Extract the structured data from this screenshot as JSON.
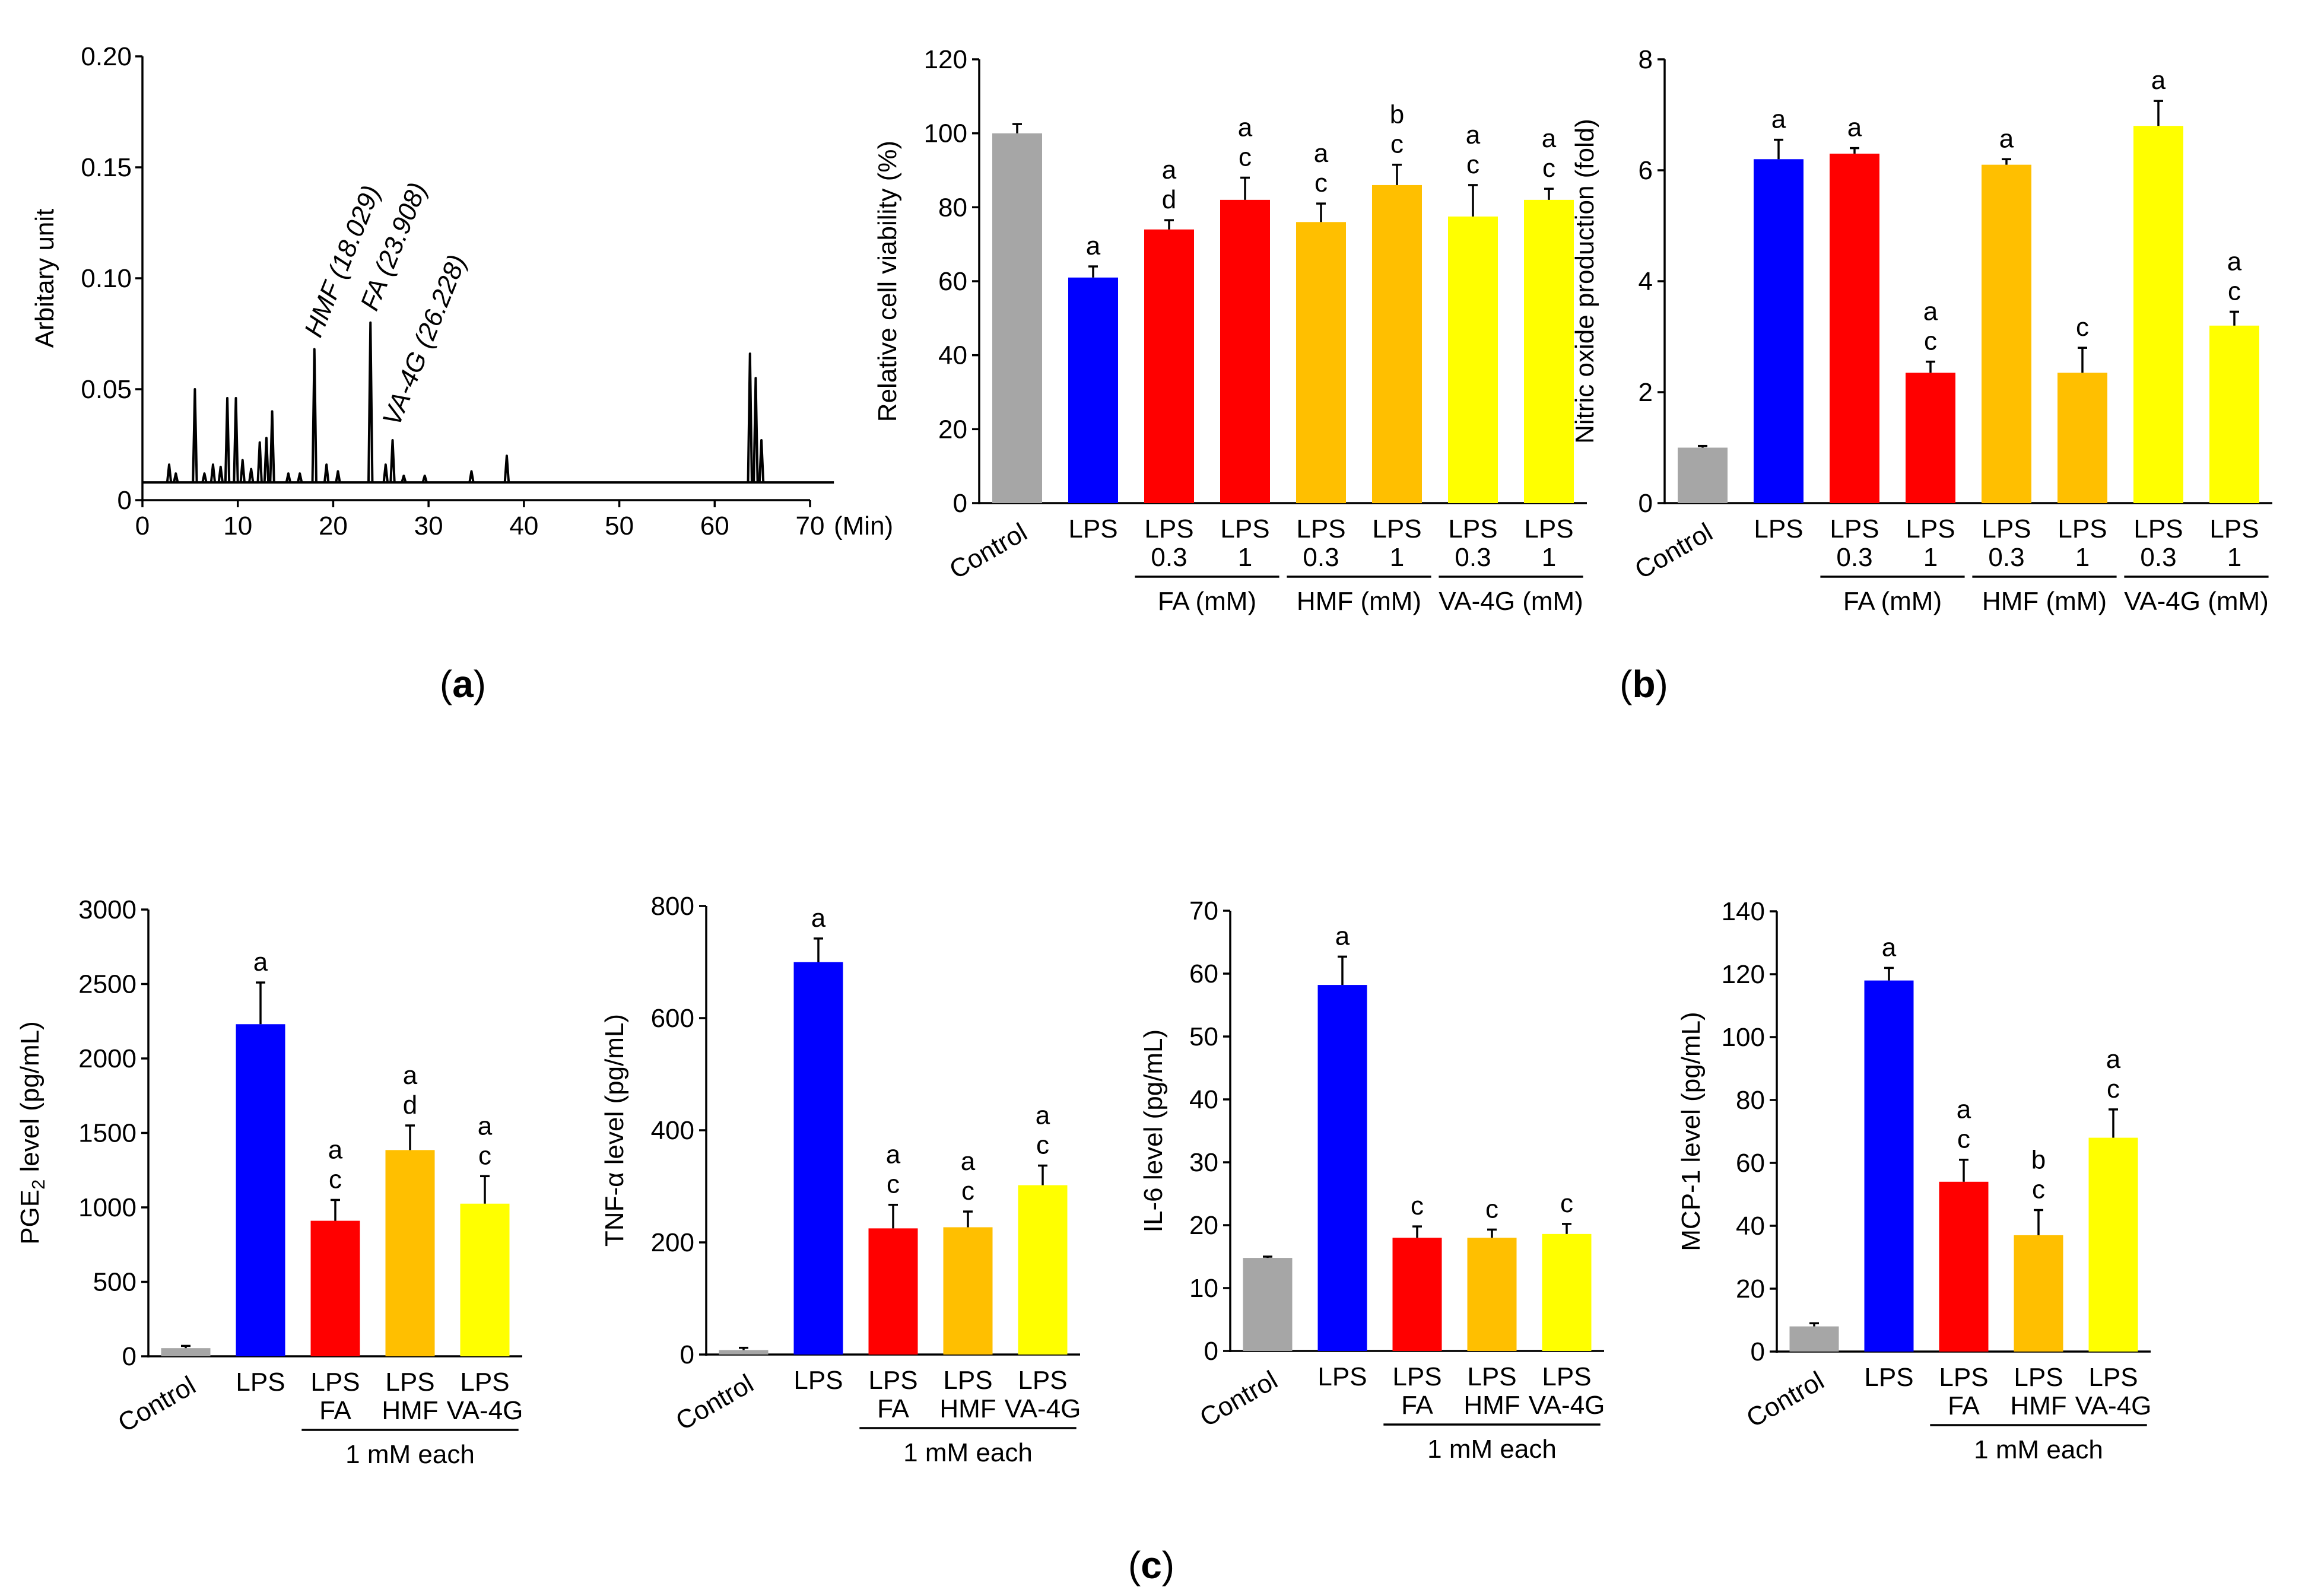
{
  "panel_labels": {
    "a": "a",
    "b": "b",
    "c": "c"
  },
  "colors": {
    "gray": "#a6a6a6",
    "blue": "#0000ff",
    "red": "#ff0000",
    "orange": "#ffbf00",
    "yellow": "#ffff00",
    "line": "#000000"
  },
  "chart_data": [
    {
      "id": "a",
      "type": "line",
      "title": "",
      "xlabel": "(Min)",
      "ylabel": "Arbitary unit",
      "xlim": [
        0,
        70
      ],
      "ylim": [
        0,
        0.2
      ],
      "xticks": [
        0,
        10,
        20,
        30,
        40,
        50,
        60,
        70
      ],
      "xtick_labels": [
        "0",
        "10",
        "20",
        "30",
        "40",
        "50",
        "60",
        "70"
      ],
      "yticks": [
        0,
        0.05,
        0.1,
        0.15,
        0.2
      ],
      "ytick_labels": [
        "0",
        "0.05",
        "0.10",
        "0.15",
        "0.20"
      ],
      "baseline": 0.008,
      "peaks": [
        {
          "x": 2.8,
          "y": 0.016
        },
        {
          "x": 3.5,
          "y": 0.012
        },
        {
          "x": 5.5,
          "y": 0.05
        },
        {
          "x": 6.5,
          "y": 0.012
        },
        {
          "x": 7.4,
          "y": 0.016
        },
        {
          "x": 8.2,
          "y": 0.015
        },
        {
          "x": 8.9,
          "y": 0.046
        },
        {
          "x": 9.8,
          "y": 0.046
        },
        {
          "x": 10.5,
          "y": 0.018
        },
        {
          "x": 11.4,
          "y": 0.014
        },
        {
          "x": 12.3,
          "y": 0.026
        },
        {
          "x": 13.0,
          "y": 0.028
        },
        {
          "x": 13.6,
          "y": 0.04
        },
        {
          "x": 15.3,
          "y": 0.012
        },
        {
          "x": 16.5,
          "y": 0.012
        },
        {
          "x": 18.029,
          "y": 0.068
        },
        {
          "x": 19.3,
          "y": 0.016
        },
        {
          "x": 20.5,
          "y": 0.013
        },
        {
          "x": 23.908,
          "y": 0.08
        },
        {
          "x": 25.5,
          "y": 0.016
        },
        {
          "x": 26.228,
          "y": 0.027
        },
        {
          "x": 27.4,
          "y": 0.011
        },
        {
          "x": 29.6,
          "y": 0.011
        },
        {
          "x": 34.5,
          "y": 0.013
        },
        {
          "x": 38.2,
          "y": 0.02
        },
        {
          "x": 63.7,
          "y": 0.066
        },
        {
          "x": 64.3,
          "y": 0.055
        },
        {
          "x": 64.9,
          "y": 0.027
        }
      ],
      "annotations": [
        {
          "text": "HMF (18.029)",
          "x": 18.029,
          "y": 0.07
        },
        {
          "text": "FA (23.908)",
          "x": 23.908,
          "y": 0.082
        },
        {
          "text": "VA-4G (26.228)",
          "x": 26.228,
          "y": 0.03
        }
      ]
    },
    {
      "id": "b1",
      "type": "bar",
      "ylabel": "Relative cell viability (%)",
      "ylim": [
        0,
        120
      ],
      "yticks": [
        0,
        20,
        40,
        60,
        80,
        100,
        120
      ],
      "categories": [
        {
          "lines": [
            "Control"
          ],
          "rotated": true
        },
        {
          "lines": [
            "LPS"
          ]
        },
        {
          "lines": [
            "LPS",
            "0.3"
          ]
        },
        {
          "lines": [
            "LPS",
            "1"
          ]
        },
        {
          "lines": [
            "LPS",
            "0.3"
          ]
        },
        {
          "lines": [
            "LPS",
            "1"
          ]
        },
        {
          "lines": [
            "LPS",
            "0.3"
          ]
        },
        {
          "lines": [
            "LPS",
            "1"
          ]
        }
      ],
      "values": [
        100,
        61,
        74,
        82,
        76,
        86,
        77.5,
        82
      ],
      "errors": [
        2.5,
        3,
        2.5,
        6,
        5,
        5.5,
        8.5,
        3
      ],
      "colors": [
        "gray",
        "blue",
        "red",
        "red",
        "orange",
        "orange",
        "yellow",
        "yellow"
      ],
      "sig_labels": [
        [],
        [
          "a"
        ],
        [
          "a",
          "d"
        ],
        [
          "a",
          "c"
        ],
        [
          "a",
          "c"
        ],
        [
          "b",
          "c"
        ],
        [
          "a",
          "c"
        ],
        [
          "a",
          "c"
        ]
      ],
      "groups": [
        {
          "label": "FA (mM)",
          "from": 2,
          "to": 3
        },
        {
          "label": "HMF (mM)",
          "from": 4,
          "to": 5
        },
        {
          "label": "VA-4G (mM)",
          "from": 6,
          "to": 7
        }
      ]
    },
    {
      "id": "b2",
      "type": "bar",
      "ylabel": "Nitric oxide production (fold)",
      "ylim": [
        0,
        8
      ],
      "yticks": [
        0,
        2,
        4,
        6,
        8
      ],
      "categories": [
        {
          "lines": [
            "Control"
          ],
          "rotated": true
        },
        {
          "lines": [
            "LPS"
          ]
        },
        {
          "lines": [
            "LPS",
            "0.3"
          ]
        },
        {
          "lines": [
            "LPS",
            "1"
          ]
        },
        {
          "lines": [
            "LPS",
            "0.3"
          ]
        },
        {
          "lines": [
            "LPS",
            "1"
          ]
        },
        {
          "lines": [
            "LPS",
            "0.3"
          ]
        },
        {
          "lines": [
            "LPS",
            "1"
          ]
        }
      ],
      "values": [
        1.0,
        6.2,
        6.3,
        2.35,
        6.1,
        2.35,
        6.8,
        3.2
      ],
      "errors": [
        0.03,
        0.35,
        0.1,
        0.2,
        0.1,
        0.45,
        0.45,
        0.25
      ],
      "colors": [
        "gray",
        "blue",
        "red",
        "red",
        "orange",
        "orange",
        "yellow",
        "yellow"
      ],
      "sig_labels": [
        [],
        [
          "a"
        ],
        [
          "a"
        ],
        [
          "a",
          "c"
        ],
        [
          "a"
        ],
        [
          "c"
        ],
        [
          "a"
        ],
        [
          "a",
          "c"
        ]
      ],
      "groups": [
        {
          "label": "FA (mM)",
          "from": 2,
          "to": 3
        },
        {
          "label": "HMF (mM)",
          "from": 4,
          "to": 5
        },
        {
          "label": "VA-4G (mM)",
          "from": 6,
          "to": 7
        }
      ]
    },
    {
      "id": "c1",
      "type": "bar",
      "ylabel": "PGE2 level (pg/mL)",
      "ylabel_parts": [
        "PGE",
        "2",
        " level (pg/mL)"
      ],
      "ylim": [
        0,
        3000
      ],
      "yticks": [
        0,
        500,
        1000,
        1500,
        2000,
        2500,
        3000
      ],
      "categories": [
        {
          "lines": [
            "Control"
          ],
          "rotated": true
        },
        {
          "lines": [
            "LPS"
          ]
        },
        {
          "lines": [
            "LPS",
            "FA"
          ]
        },
        {
          "lines": [
            "LPS",
            "HMF"
          ]
        },
        {
          "lines": [
            "LPS",
            "VA-4G"
          ]
        }
      ],
      "values": [
        55,
        2230,
        910,
        1385,
        1025
      ],
      "errors": [
        15,
        280,
        140,
        165,
        185
      ],
      "colors": [
        "gray",
        "blue",
        "red",
        "orange",
        "yellow"
      ],
      "sig_labels": [
        [],
        [
          "a"
        ],
        [
          "a",
          "c"
        ],
        [
          "a",
          "d"
        ],
        [
          "a",
          "c"
        ]
      ],
      "groups": [
        {
          "label": "1 mM each",
          "from": 2,
          "to": 4
        }
      ]
    },
    {
      "id": "c2",
      "type": "bar",
      "ylabel": "TNF-α level (pg/mL)",
      "ylabel_parts": [
        "TNF-α level (pg/mL)"
      ],
      "ylim": [
        0,
        800
      ],
      "yticks": [
        0,
        200,
        400,
        600,
        800
      ],
      "categories": [
        {
          "lines": [
            "Control"
          ],
          "rotated": true
        },
        {
          "lines": [
            "LPS"
          ]
        },
        {
          "lines": [
            "LPS",
            "FA"
          ]
        },
        {
          "lines": [
            "LPS",
            "HMF"
          ]
        },
        {
          "lines": [
            "LPS",
            "VA-4G"
          ]
        }
      ],
      "values": [
        8,
        700,
        225,
        227,
        302
      ],
      "errors": [
        4,
        42,
        42,
        28,
        35
      ],
      "colors": [
        "gray",
        "blue",
        "red",
        "orange",
        "yellow"
      ],
      "sig_labels": [
        [],
        [
          "a"
        ],
        [
          "a",
          "c"
        ],
        [
          "a",
          "c"
        ],
        [
          "a",
          "c"
        ]
      ],
      "groups": [
        {
          "label": "1 mM each",
          "from": 2,
          "to": 4
        }
      ]
    },
    {
      "id": "c3",
      "type": "bar",
      "ylabel": "IL-6 level (pg/mL)",
      "ylabel_parts": [
        "IL-6 level (pg/mL)"
      ],
      "ylim": [
        0,
        70
      ],
      "yticks": [
        0,
        10,
        20,
        30,
        40,
        50,
        60,
        70
      ],
      "categories": [
        {
          "lines": [
            "Control"
          ],
          "rotated": true
        },
        {
          "lines": [
            "LPS"
          ]
        },
        {
          "lines": [
            "LPS",
            "FA"
          ]
        },
        {
          "lines": [
            "LPS",
            "HMF"
          ]
        },
        {
          "lines": [
            "LPS",
            "VA-4G"
          ]
        }
      ],
      "values": [
        14.8,
        58.2,
        18,
        18,
        18.6
      ],
      "errors": [
        0.2,
        4.5,
        1.8,
        1.3,
        1.6
      ],
      "colors": [
        "gray",
        "blue",
        "red",
        "orange",
        "yellow"
      ],
      "sig_labels": [
        [],
        [
          "a"
        ],
        [
          "c"
        ],
        [
          "c"
        ],
        [
          "c"
        ]
      ],
      "groups": [
        {
          "label": "1 mM each",
          "from": 2,
          "to": 4
        }
      ]
    },
    {
      "id": "c4",
      "type": "bar",
      "ylabel": "MCP-1 level (pg/mL)",
      "ylabel_parts": [
        "MCP-1 level (pg/mL)"
      ],
      "ylim": [
        0,
        140
      ],
      "yticks": [
        0,
        20,
        40,
        60,
        80,
        100,
        120,
        140
      ],
      "categories": [
        {
          "lines": [
            "Control"
          ],
          "rotated": true
        },
        {
          "lines": [
            "LPS"
          ]
        },
        {
          "lines": [
            "LPS",
            "FA"
          ]
        },
        {
          "lines": [
            "LPS",
            "HMF"
          ]
        },
        {
          "lines": [
            "LPS",
            "VA-4G"
          ]
        }
      ],
      "values": [
        8,
        118,
        54,
        37,
        68
      ],
      "errors": [
        1,
        4,
        7,
        8,
        9
      ],
      "colors": [
        "gray",
        "blue",
        "red",
        "orange",
        "yellow"
      ],
      "sig_labels": [
        [],
        [
          "a"
        ],
        [
          "a",
          "c"
        ],
        [
          "b",
          "c"
        ],
        [
          "a",
          "c"
        ]
      ],
      "groups": [
        {
          "label": "1 mM each",
          "from": 2,
          "to": 4
        }
      ]
    }
  ]
}
